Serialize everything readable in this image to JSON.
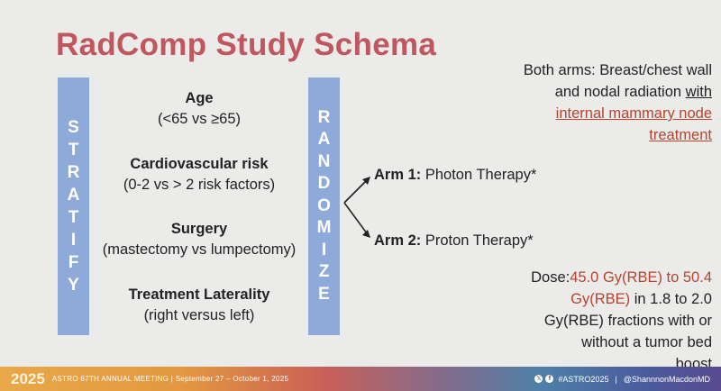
{
  "title": "RadComp Study Schema",
  "stratify_letters": [
    "S",
    "T",
    "R",
    "A",
    "T",
    "I",
    "F",
    "Y"
  ],
  "randomize_letters": [
    "R",
    "A",
    "N",
    "D",
    "O",
    "M",
    "I",
    "Z",
    "E"
  ],
  "factors": [
    {
      "name": "Age",
      "detail": "(<65 vs ≥65)"
    },
    {
      "name": "Cardiovascular risk",
      "detail": "(0-2 vs > 2 risk factors)"
    },
    {
      "name": "Surgery",
      "detail": "(mastectomy vs lumpectomy)"
    },
    {
      "name": "Treatment Laterality",
      "detail": "(right versus left)"
    }
  ],
  "arms": [
    {
      "label": "Arm 1:",
      "therapy": "Photon Therapy*"
    },
    {
      "label": "Arm 2:",
      "therapy": "Proton Therapy*"
    }
  ],
  "both_arms": {
    "text1": "Both arms: Breast/chest wall",
    "text2": "and nodal radiation ",
    "with": "with",
    "red1": "internal mammary node",
    "red2": "treatment"
  },
  "dose": {
    "label": "Dose:",
    "red1": "45.0 Gy(RBE) to 50.4",
    "red2": "Gy(RBE)",
    "text1": " in 1.8 to 2.0",
    "text2": "Gy(RBE) fractions with or",
    "text3": "without a tumor bed",
    "text4": "boost"
  },
  "footer": {
    "logo": "2025",
    "meeting": "ASTRO 67TH ANNUAL MEETING | September 27 – October 1, 2025",
    "hashtag": "#ASTRO2025",
    "separator": "|",
    "handle": "@ShannnonMacdonMD"
  },
  "colors": {
    "title": "#c0575e",
    "bar": "#8eaad8",
    "highlight": "#b8432f"
  }
}
